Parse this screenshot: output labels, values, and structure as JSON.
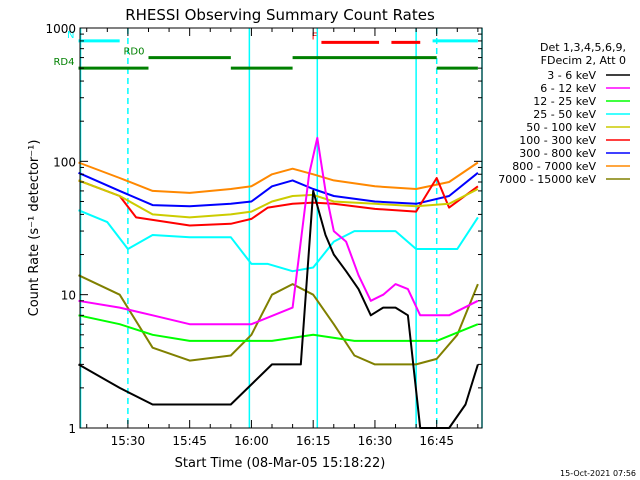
{
  "chart_data": {
    "type": "line",
    "title": "RHESSI Observing Summary Count Rates",
    "xlabel": "Start Time (08-Mar-05 15:18:22)",
    "ylabel": "Count Rate (s⁻¹ detector⁻¹)",
    "y_scale": "log",
    "ylim": [
      1,
      1000
    ],
    "xlim": [
      "15:18:22",
      "16:56:00"
    ],
    "x_ticks": [
      "15:30",
      "15:45",
      "16:00",
      "16:15",
      "16:30",
      "16:45"
    ],
    "y_ticks": [
      "1",
      "10",
      "100",
      "1000"
    ],
    "footer": "15-Oct-2021 07:56",
    "legend": {
      "position": "right",
      "header": [
        "Det 1,3,4,5,6,9,",
        "FDecim 2, Att 0"
      ]
    },
    "series": [
      {
        "name": "3 - 6 keV",
        "color": "#000000",
        "x": [
          "15:18",
          "15:28",
          "15:36",
          "15:45",
          "15:55",
          "16:05",
          "16:12",
          "16:15",
          "16:18",
          "16:20",
          "16:23",
          "16:26",
          "16:29",
          "16:32",
          "16:35",
          "16:38",
          "16:41",
          "16:44",
          "16:48",
          "16:52",
          "16:55"
        ],
        "values": [
          3,
          2,
          1.5,
          1.5,
          1.5,
          3,
          3,
          60,
          28,
          20,
          15,
          11,
          7,
          8,
          8,
          7,
          1,
          1,
          1,
          1.5,
          3
        ]
      },
      {
        "name": "6 - 12 keV",
        "color": "#ff00ff",
        "x": [
          "15:18",
          "15:28",
          "15:36",
          "15:45",
          "15:55",
          "16:00",
          "16:10",
          "16:14",
          "16:16",
          "16:18",
          "16:20",
          "16:23",
          "16:26",
          "16:29",
          "16:32",
          "16:35",
          "16:38",
          "16:41",
          "16:48",
          "16:55"
        ],
        "values": [
          9,
          8,
          7,
          6,
          6,
          6,
          8,
          80,
          150,
          60,
          30,
          25,
          14,
          9,
          10,
          12,
          11,
          7,
          7,
          9
        ]
      },
      {
        "name": "12 - 25 keV",
        "color": "#00ff00",
        "x": [
          "15:18",
          "15:28",
          "15:36",
          "15:45",
          "15:55",
          "16:05",
          "16:15",
          "16:25",
          "16:35",
          "16:45",
          "16:55"
        ],
        "values": [
          7,
          6,
          5,
          4.5,
          4.5,
          4.5,
          5,
          4.5,
          4.5,
          4.5,
          6
        ]
      },
      {
        "name": "25 - 50 keV",
        "color": "#00ffff",
        "x": [
          "15:18",
          "15:25",
          "15:30",
          "15:36",
          "15:45",
          "15:55",
          "16:00",
          "16:04",
          "16:10",
          "16:15",
          "16:20",
          "16:25",
          "16:30",
          "16:35",
          "16:40",
          "16:45",
          "16:50",
          "16:55"
        ],
        "values": [
          43,
          35,
          22,
          28,
          27,
          27,
          17,
          17,
          15,
          16,
          25,
          30,
          30,
          30,
          22,
          22,
          22,
          38
        ]
      },
      {
        "name": "50 - 100 keV",
        "color": "#cccc00",
        "x": [
          "15:18",
          "15:28",
          "15:36",
          "15:45",
          "15:55",
          "16:00",
          "16:05",
          "16:10",
          "16:15",
          "16:20",
          "16:30",
          "16:40",
          "16:48",
          "16:55"
        ],
        "values": [
          72,
          55,
          40,
          38,
          40,
          42,
          50,
          55,
          56,
          50,
          48,
          46,
          48,
          62
        ]
      },
      {
        "name": "100 - 300 keV",
        "color": "#ff0000",
        "x": [
          "15:18",
          "15:28",
          "15:32",
          "15:45",
          "15:55",
          "16:00",
          "16:04",
          "16:10",
          "16:15",
          "16:20",
          "16:30",
          "16:40",
          "16:45",
          "16:48",
          "16:55"
        ],
        "values": [
          72,
          55,
          38,
          33,
          34,
          37,
          45,
          48,
          49,
          48,
          44,
          42,
          75,
          45,
          65
        ]
      },
      {
        "name": "300 - 800 keV",
        "color": "#0000ff",
        "x": [
          "15:18",
          "15:28",
          "15:36",
          "15:45",
          "15:55",
          "16:00",
          "16:05",
          "16:10",
          "16:15",
          "16:20",
          "16:30",
          "16:40",
          "16:48",
          "16:55"
        ],
        "values": [
          82,
          60,
          47,
          46,
          48,
          50,
          65,
          72,
          62,
          55,
          50,
          48,
          55,
          82
        ]
      },
      {
        "name": "800 - 7000 keV",
        "color": "#ff8800",
        "x": [
          "15:18",
          "15:28",
          "15:36",
          "15:45",
          "15:55",
          "16:00",
          "16:05",
          "16:10",
          "16:15",
          "16:20",
          "16:30",
          "16:40",
          "16:48",
          "16:55"
        ],
        "values": [
          98,
          75,
          60,
          58,
          62,
          65,
          80,
          88,
          80,
          72,
          65,
          62,
          70,
          98
        ]
      },
      {
        "name": "7000 - 15000 keV",
        "color": "#808000",
        "x": [
          "15:18",
          "15:28",
          "15:36",
          "15:45",
          "15:55",
          "16:00",
          "16:05",
          "16:10",
          "16:15",
          "16:20",
          "16:25",
          "16:30",
          "16:40",
          "16:45",
          "16:50",
          "16:55"
        ],
        "values": [
          14,
          10,
          4,
          3.2,
          3.5,
          5,
          10,
          12,
          10,
          6,
          3.5,
          3,
          3,
          3.3,
          5,
          12
        ]
      }
    ],
    "annotations": [
      {
        "label": "N",
        "color": "#00ffff",
        "y": 800,
        "segments": [
          [
            "15:18",
            "15:28"
          ],
          [
            "16:44",
            "16:55"
          ]
        ]
      },
      {
        "label": "RD0",
        "color": "#008000",
        "y": 600,
        "segments": [
          [
            "15:35",
            "15:55"
          ],
          [
            "16:10",
            "16:45"
          ]
        ]
      },
      {
        "label": "RD4",
        "color": "#008000",
        "y": 500,
        "segments": [
          [
            "15:18",
            "15:35"
          ],
          [
            "15:55",
            "16:10"
          ],
          [
            "16:45",
            "16:55"
          ]
        ]
      },
      {
        "label": "F",
        "color": "#ff0000",
        "y": 780,
        "segments": [
          [
            "16:17",
            "16:31"
          ],
          [
            "16:34",
            "16:41"
          ]
        ]
      }
    ],
    "vlines": [
      {
        "color": "#00ffff",
        "style": "solid",
        "x": [
          "15:18:30",
          "15:59:30",
          "16:16",
          "16:40",
          "16:56"
        ]
      },
      {
        "color": "#00ffff",
        "style": "dashed",
        "x": [
          "15:30",
          "16:45"
        ]
      }
    ]
  }
}
